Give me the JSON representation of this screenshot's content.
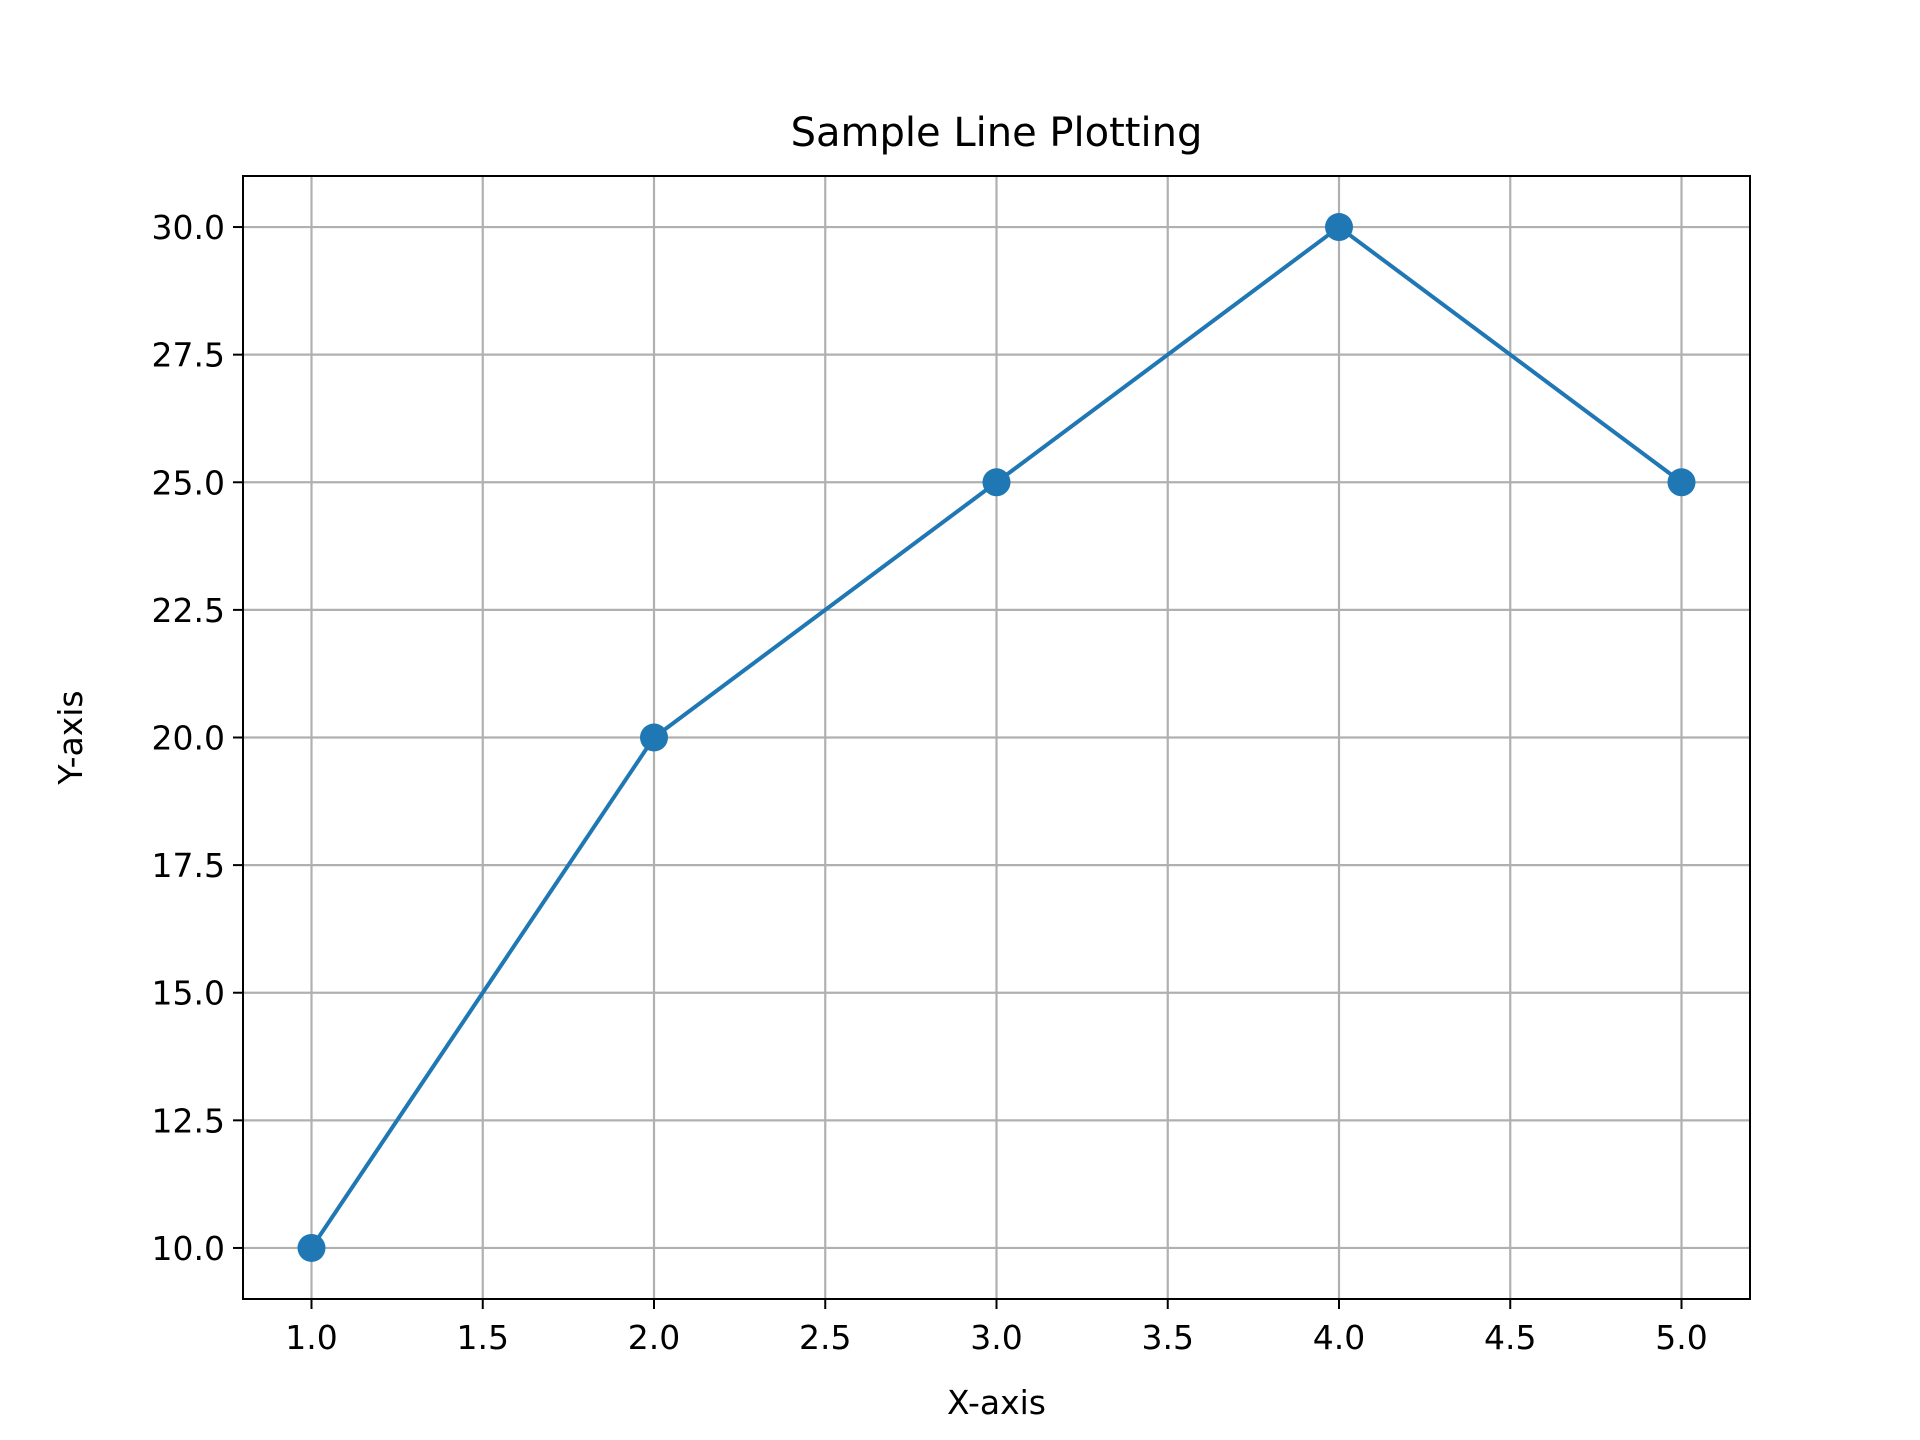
{
  "chart_data": {
    "type": "line",
    "title": "Sample Line Plotting",
    "xlabel": "X-axis",
    "ylabel": "Y-axis",
    "x": [
      1,
      2,
      3,
      4,
      5
    ],
    "series": [
      {
        "values": [
          10,
          20,
          25,
          30,
          25
        ]
      }
    ],
    "xlim": [
      0.8,
      5.2
    ],
    "ylim": [
      9,
      31
    ],
    "xticks": [
      "1.0",
      "1.5",
      "2.0",
      "2.5",
      "3.0",
      "3.5",
      "4.0",
      "4.5",
      "5.0"
    ],
    "yticks": [
      "10.0",
      "12.5",
      "15.0",
      "17.5",
      "20.0",
      "22.5",
      "25.0",
      "27.5",
      "30.0"
    ],
    "grid": true,
    "marker": "circle",
    "colors": {
      "line": "#1f77b4",
      "grid": "#b0b0b0",
      "axes": "#000000"
    }
  }
}
